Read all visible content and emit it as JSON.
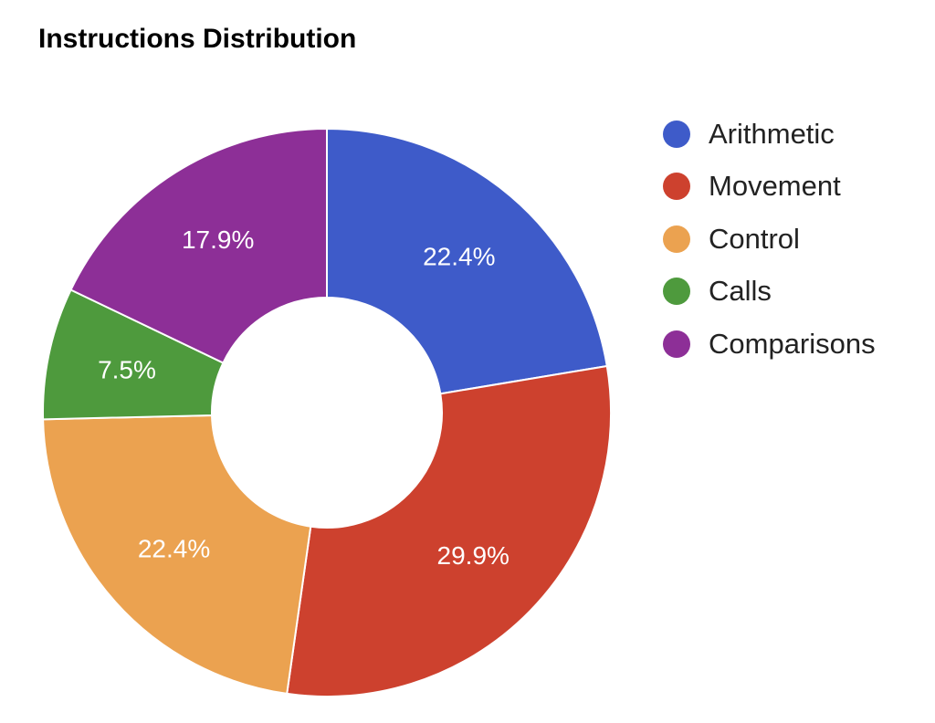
{
  "chart_data": {
    "type": "pie",
    "title": "Instructions Distribution",
    "donut": true,
    "legend_position": "right",
    "slices": [
      {
        "name": "Arithmetic",
        "value": 22.4,
        "label": "22.4%",
        "color": "#3e5bc9"
      },
      {
        "name": "Movement",
        "value": 29.9,
        "label": "29.9%",
        "color": "#cd412e"
      },
      {
        "name": "Control",
        "value": 22.4,
        "label": "22.4%",
        "color": "#eba250"
      },
      {
        "name": "Calls",
        "value": 7.5,
        "label": "7.5%",
        "color": "#4e9a3d"
      },
      {
        "name": "Comparisons",
        "value": 17.9,
        "label": "17.9%",
        "color": "#8d2f97"
      }
    ]
  }
}
